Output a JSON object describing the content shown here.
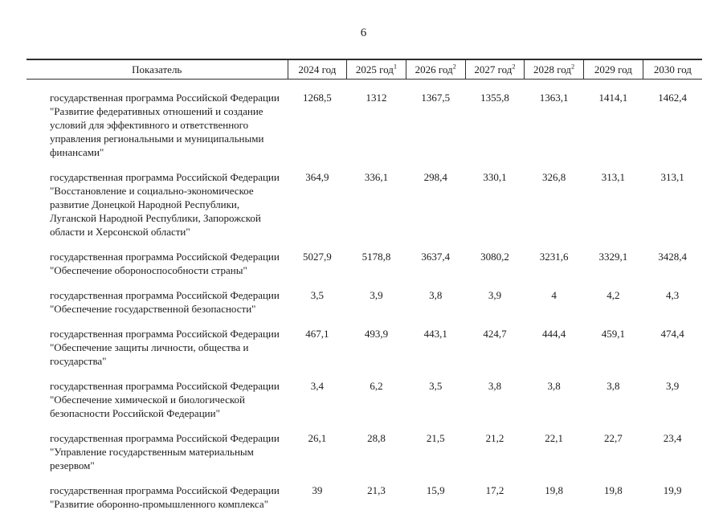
{
  "page": {
    "number": "6"
  },
  "table": {
    "header": {
      "indicator": "Показатель",
      "years": [
        {
          "label": "2024 год",
          "sup": ""
        },
        {
          "label": "2025 год",
          "sup": "1"
        },
        {
          "label": "2026 год",
          "sup": "2"
        },
        {
          "label": "2027 год",
          "sup": "2"
        },
        {
          "label": "2028 год",
          "sup": "2"
        },
        {
          "label": "2029 год",
          "sup": ""
        },
        {
          "label": "2030 год",
          "sup": ""
        }
      ]
    },
    "rows": [
      {
        "name": "государственная программа Российской Федерации \"Развитие федеративных отношений и создание условий для эффективного и ответственного управления региональными и муниципальными финансами\"",
        "values": [
          "1268,5",
          "1312",
          "1367,5",
          "1355,8",
          "1363,1",
          "1414,1",
          "1462,4"
        ]
      },
      {
        "name": "государственная программа Российской Федерации \"Восстановление и социально-экономическое развитие Донецкой Народной Республики, Луганской Народной Республики, Запорожской области и Херсонской области\"",
        "values": [
          "364,9",
          "336,1",
          "298,4",
          "330,1",
          "326,8",
          "313,1",
          "313,1"
        ]
      },
      {
        "name": "государственная программа Российской Федерации \"Обеспечение обороноспособности страны\"",
        "values": [
          "5027,9",
          "5178,8",
          "3637,4",
          "3080,2",
          "3231,6",
          "3329,1",
          "3428,4"
        ]
      },
      {
        "name": "государственная программа Российской Федерации \"Обеспечение государственной безопасности\"",
        "values": [
          "3,5",
          "3,9",
          "3,8",
          "3,9",
          "4",
          "4,2",
          "4,3"
        ]
      },
      {
        "name": "государственная программа Российской Федерации \"Обеспечение защиты личности, общества и государства\"",
        "values": [
          "467,1",
          "493,9",
          "443,1",
          "424,7",
          "444,4",
          "459,1",
          "474,4"
        ]
      },
      {
        "name": "государственная программа Российской Федерации \"Обеспечение химической и биологической безопасности Российской Федерации\"",
        "values": [
          "3,4",
          "6,2",
          "3,5",
          "3,8",
          "3,8",
          "3,8",
          "3,9"
        ]
      },
      {
        "name": "государственная программа Российской Федерации \"Управление государственным материальным резервом\"",
        "values": [
          "26,1",
          "28,8",
          "21,5",
          "21,2",
          "22,1",
          "22,7",
          "23,4"
        ]
      },
      {
        "name": "государственная программа Российской Федерации \"Развитие оборонно-промышленного комплекса\"",
        "values": [
          "39",
          "21,3",
          "15,9",
          "17,2",
          "19,8",
          "19,8",
          "19,9"
        ]
      }
    ]
  }
}
